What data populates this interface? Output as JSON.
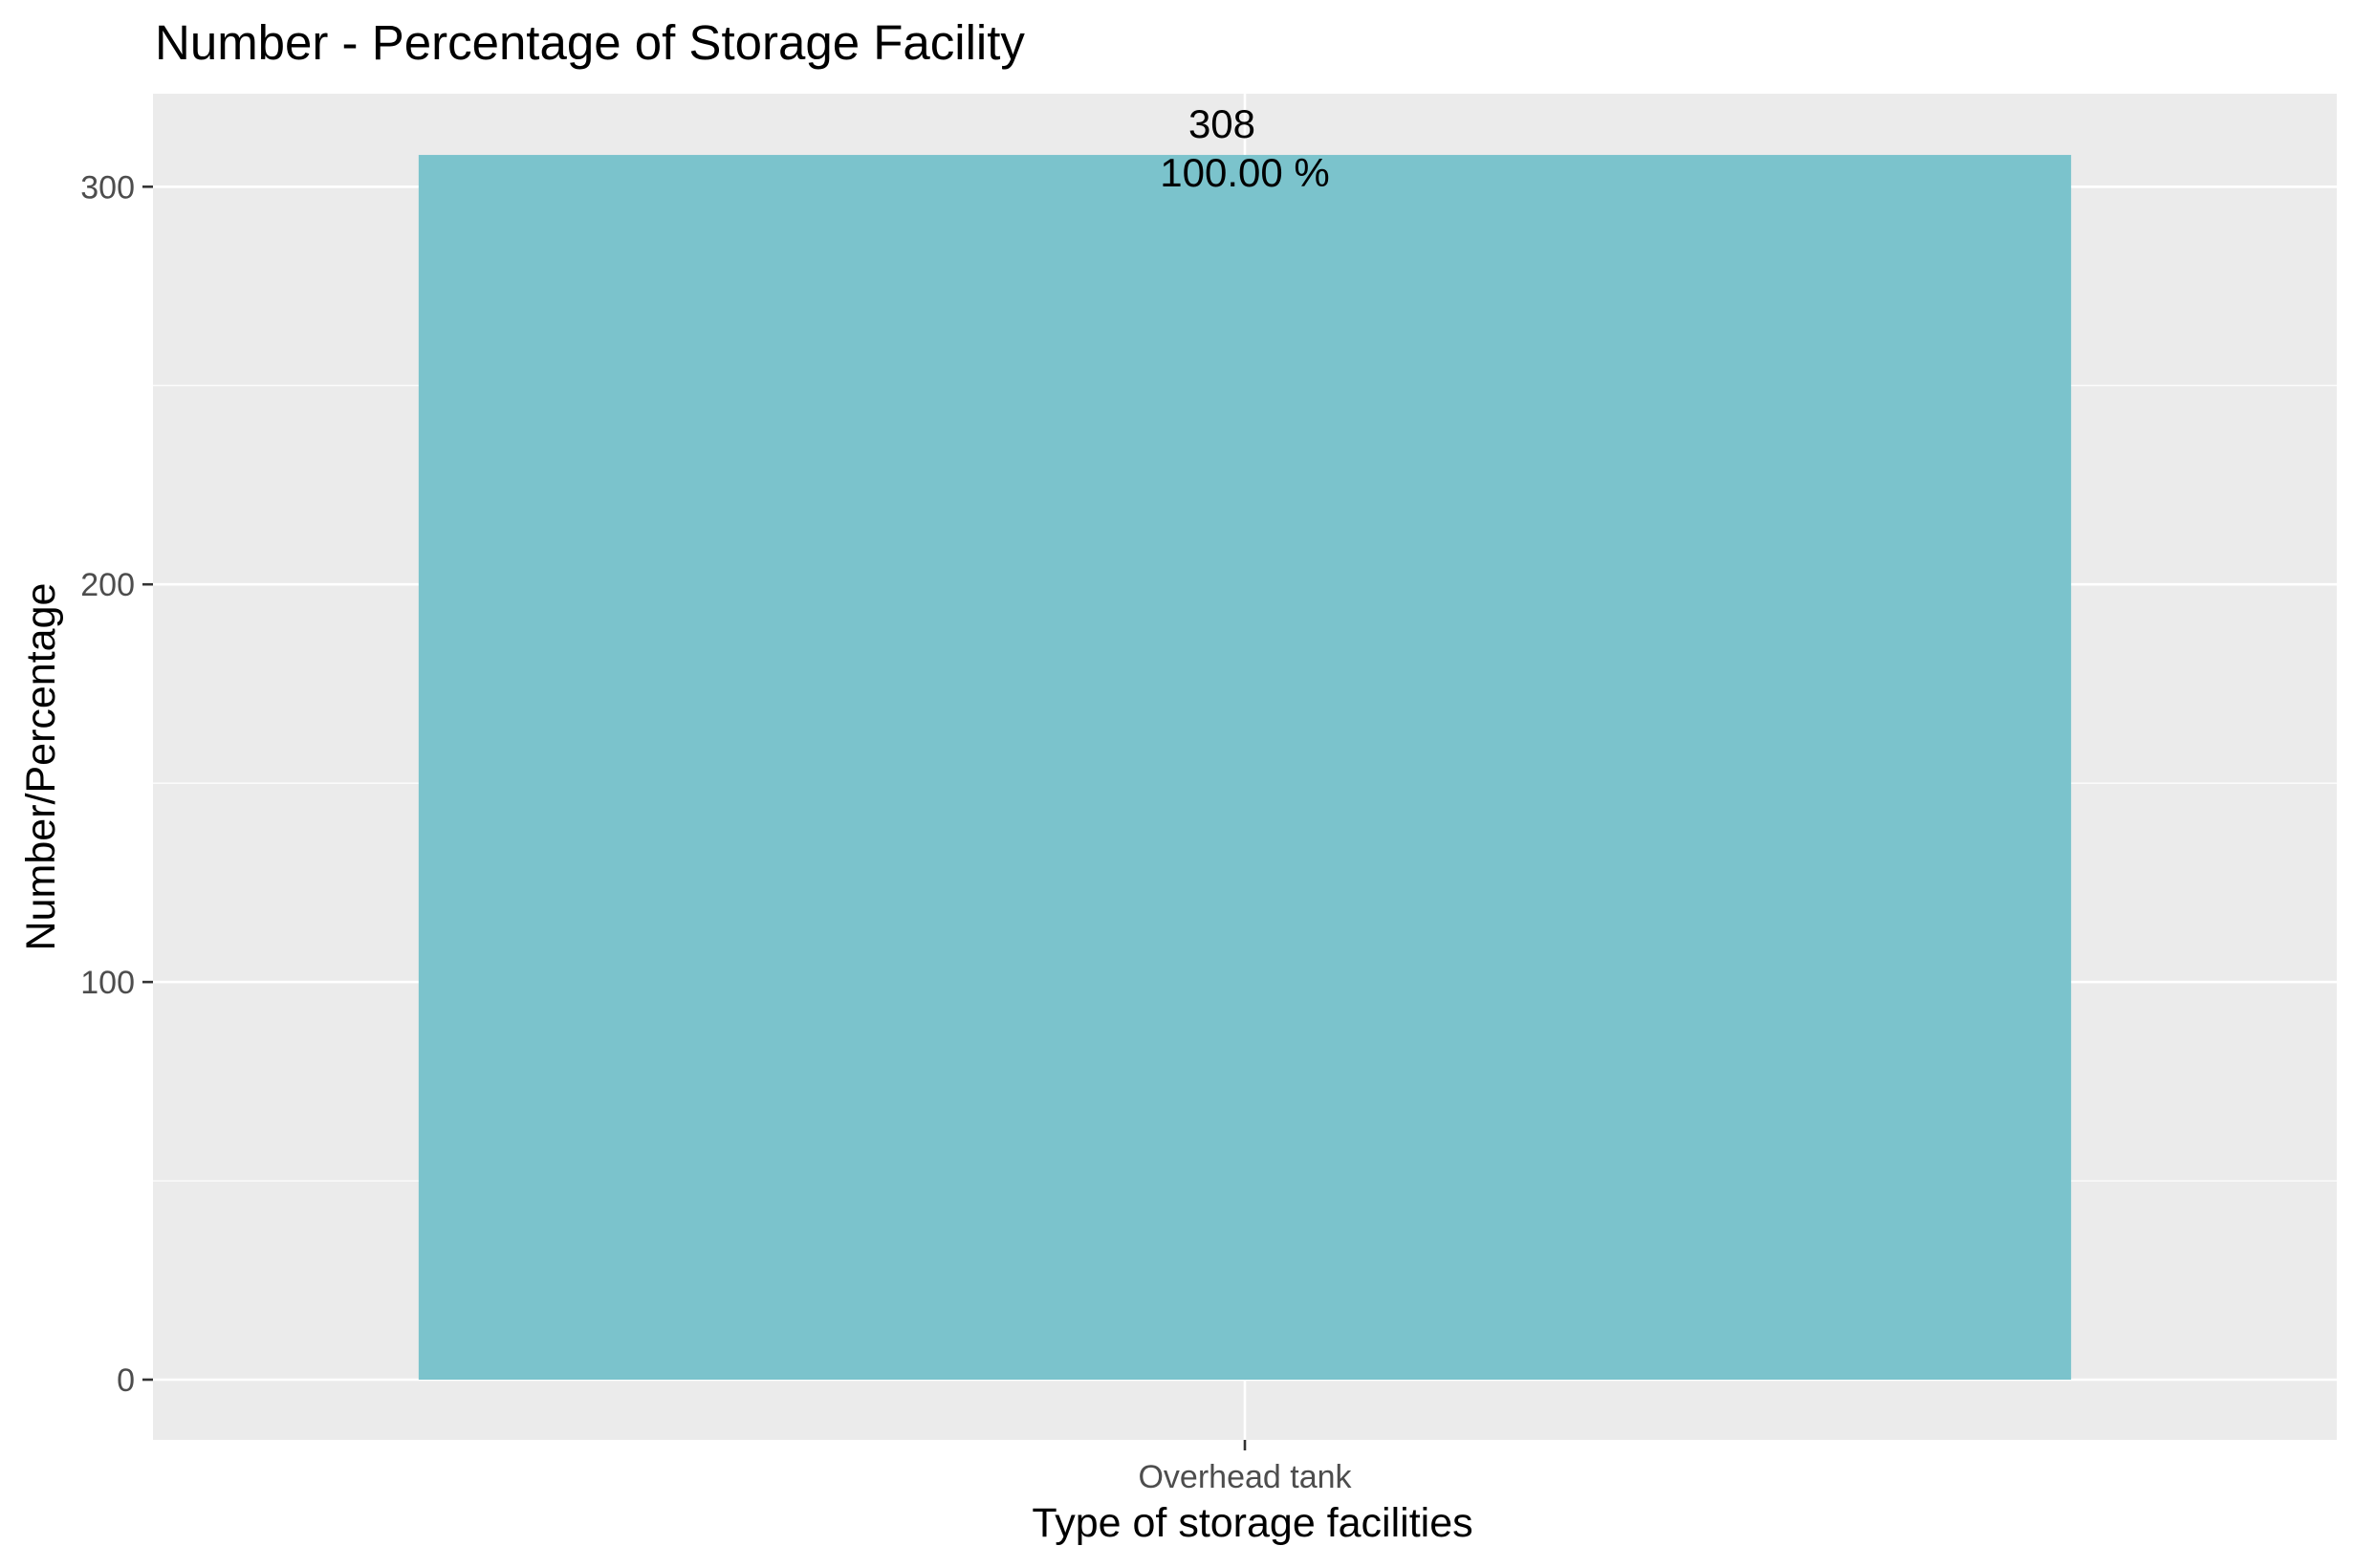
{
  "chart_data": {
    "type": "bar",
    "title": "Number - Percentage of Storage Facility",
    "xlabel": "Type of storage facilities",
    "ylabel": "Number/Percentage",
    "categories": [
      "Overhead tank"
    ],
    "values": [
      308
    ],
    "data_labels": [
      {
        "count": "308",
        "percent": "100.00 %"
      }
    ],
    "ylim": [
      0,
      323.4
    ],
    "y_ticks": [
      0,
      100,
      200,
      300
    ],
    "y_tick_labels": [
      "0",
      "100",
      "200",
      "300"
    ],
    "grid": true,
    "colors": {
      "bar": "#7BC3CC",
      "panel": "#EBEBEB",
      "grid": "#FFFFFF"
    }
  }
}
